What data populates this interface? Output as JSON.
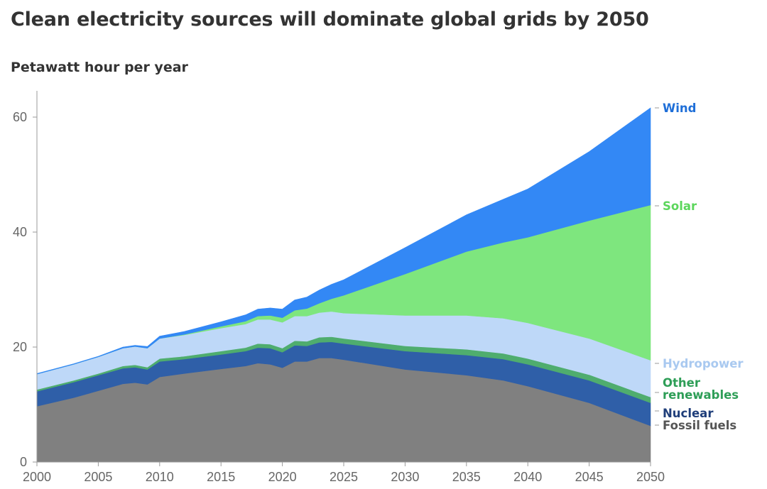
{
  "title": "Clean electricity sources will dominate global grids by 2050",
  "subtitle": "Petawatt hour per year",
  "chart_data": {
    "type": "area",
    "stacked": true,
    "title": "Clean electricity sources will dominate global grids by 2050",
    "ylabel": "Petawatt hour per year",
    "xlabel": "",
    "x": [
      2000,
      2003,
      2005,
      2007,
      2008,
      2009,
      2010,
      2012,
      2015,
      2017,
      2018,
      2019,
      2020,
      2021,
      2022,
      2023,
      2024,
      2025,
      2030,
      2035,
      2038,
      2040,
      2045,
      2050
    ],
    "xlim": [
      2000,
      2050
    ],
    "ylim": [
      0,
      64
    ],
    "xticks": [
      2000,
      2005,
      2010,
      2015,
      2020,
      2025,
      2030,
      2035,
      2040,
      2045,
      2050
    ],
    "yticks": [
      0,
      20,
      40,
      60
    ],
    "series": [
      {
        "name": "Fossil fuels",
        "color": "#808080",
        "values": [
          9.7,
          11.2,
          12.4,
          13.6,
          13.8,
          13.5,
          14.8,
          15.4,
          16.2,
          16.7,
          17.2,
          17.0,
          16.4,
          17.5,
          17.5,
          18.1,
          18.1,
          17.8,
          16.1,
          15.1,
          14.2,
          13.2,
          10.3,
          6.3
        ]
      },
      {
        "name": "Nuclear",
        "color": "#2F5FA8",
        "values": [
          2.6,
          2.7,
          2.7,
          2.7,
          2.7,
          2.6,
          2.7,
          2.5,
          2.5,
          2.6,
          2.7,
          2.8,
          2.7,
          2.8,
          2.7,
          2.7,
          2.8,
          2.8,
          3.2,
          3.5,
          3.7,
          3.8,
          3.9,
          4.0
        ]
      },
      {
        "name": "Other renewables",
        "color": "#4FAD6E",
        "values": [
          0.3,
          0.3,
          0.3,
          0.4,
          0.4,
          0.4,
          0.5,
          0.5,
          0.6,
          0.6,
          0.7,
          0.7,
          0.7,
          0.8,
          0.8,
          0.9,
          0.9,
          0.9,
          0.9,
          1.0,
          1.0,
          1.0,
          1.0,
          1.0
        ]
      },
      {
        "name": "Hydropower",
        "color": "#BED8F8",
        "values": [
          2.7,
          2.8,
          2.9,
          3.1,
          3.2,
          3.3,
          3.5,
          3.7,
          4.0,
          4.1,
          4.2,
          4.3,
          4.5,
          4.3,
          4.4,
          4.3,
          4.4,
          4.4,
          5.3,
          5.9,
          6.1,
          6.2,
          6.3,
          6.4
        ]
      },
      {
        "name": "Solar",
        "color": "#7EE67E",
        "values": [
          0.0,
          0.0,
          0.0,
          0.0,
          0.0,
          0.0,
          0.0,
          0.1,
          0.3,
          0.5,
          0.6,
          0.7,
          0.8,
          1.0,
          1.3,
          1.6,
          2.2,
          3.1,
          7.2,
          11.1,
          13.2,
          14.9,
          20.5,
          27.0
        ]
      },
      {
        "name": "Wind",
        "color": "#3388F5",
        "values": [
          0.1,
          0.1,
          0.1,
          0.2,
          0.2,
          0.3,
          0.4,
          0.5,
          0.8,
          1.1,
          1.2,
          1.3,
          1.5,
          1.8,
          2.0,
          2.3,
          2.5,
          2.7,
          4.6,
          6.4,
          7.5,
          8.4,
          12.0,
          16.9
        ]
      }
    ],
    "series_labels": [
      {
        "key": "wind",
        "lines": [
          "Wind"
        ],
        "color": "#1F6FD8"
      },
      {
        "key": "solar",
        "lines": [
          "Solar"
        ],
        "color": "#5CD65C"
      },
      {
        "key": "hydro",
        "lines": [
          "Hydropower"
        ],
        "color": "#A9C9F0"
      },
      {
        "key": "other",
        "lines": [
          "Other",
          "renewables"
        ],
        "color": "#2E9E57"
      },
      {
        "key": "nuclear",
        "lines": [
          "Nuclear"
        ],
        "color": "#1F3E7A"
      },
      {
        "key": "fossil",
        "lines": [
          "Fossil fuels"
        ],
        "color": "#555555"
      }
    ]
  }
}
